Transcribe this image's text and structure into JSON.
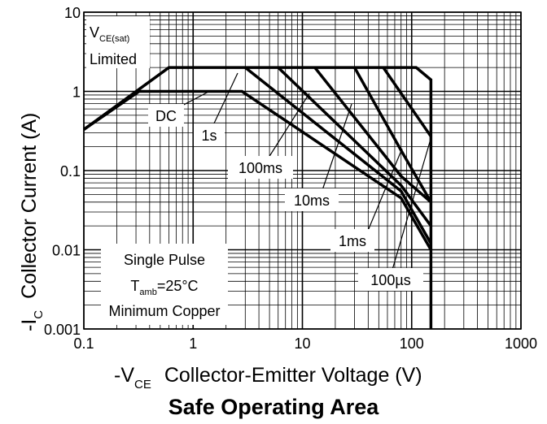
{
  "chart_data": {
    "type": "line",
    "title": "Safe Operating Area",
    "x_label": {
      "main": "-V",
      "sub": "CE",
      "rest": "Collector-Emitter Voltage (V)"
    },
    "y_label": {
      "main": "-I",
      "sub": "C",
      "rest": "Collector Current (A)"
    },
    "xscale": "log",
    "yscale": "log",
    "grid": true,
    "color": "#000000",
    "xlim": [
      0.1,
      1000
    ],
    "ylim": [
      0.001,
      10
    ],
    "xticks": [
      0.1,
      1,
      10,
      100,
      1000
    ],
    "yticks": [
      0.001,
      0.01,
      0.1,
      1,
      10
    ],
    "series": [
      {
        "name": "Limit",
        "x": [
          0.1,
          0.6,
          110,
          150,
          150
        ],
        "values": [
          0.33,
          2,
          2,
          1.4,
          0.001
        ]
      },
      {
        "name": "DC",
        "x": [
          0.1,
          0.32,
          2.8,
          80,
          150
        ],
        "values": [
          0.33,
          1,
          1,
          0.045,
          0.01
        ]
      },
      {
        "name": "1s",
        "x": [
          3,
          80,
          150
        ],
        "values": [
          2,
          0.055,
          0.012
        ]
      },
      {
        "name": "100ms",
        "x": [
          6,
          80,
          150
        ],
        "values": [
          2,
          0.065,
          0.02
        ]
      },
      {
        "name": "10ms",
        "x": [
          13,
          80,
          150
        ],
        "values": [
          2,
          0.085,
          0.04
        ]
      },
      {
        "name": "1ms",
        "x": [
          30,
          80,
          150
        ],
        "values": [
          2,
          0.18,
          0.04
        ]
      },
      {
        "name": "100µs",
        "x": [
          55,
          150
        ],
        "values": [
          2,
          0.27
        ]
      }
    ],
    "annotations": [
      {
        "text": "V",
        "sub": "CE(sat)"
      },
      {
        "text": "Limited"
      },
      {
        "text": "DC"
      },
      {
        "text": "1s"
      },
      {
        "text": "100ms"
      },
      {
        "text": "10ms"
      },
      {
        "text": "1ms"
      },
      {
        "text": "100µs"
      },
      {
        "text": "Single Pulse"
      },
      {
        "text": "T",
        "sub": "amb",
        "rest": "=25°C"
      },
      {
        "text": "Minimum Copper"
      }
    ]
  }
}
